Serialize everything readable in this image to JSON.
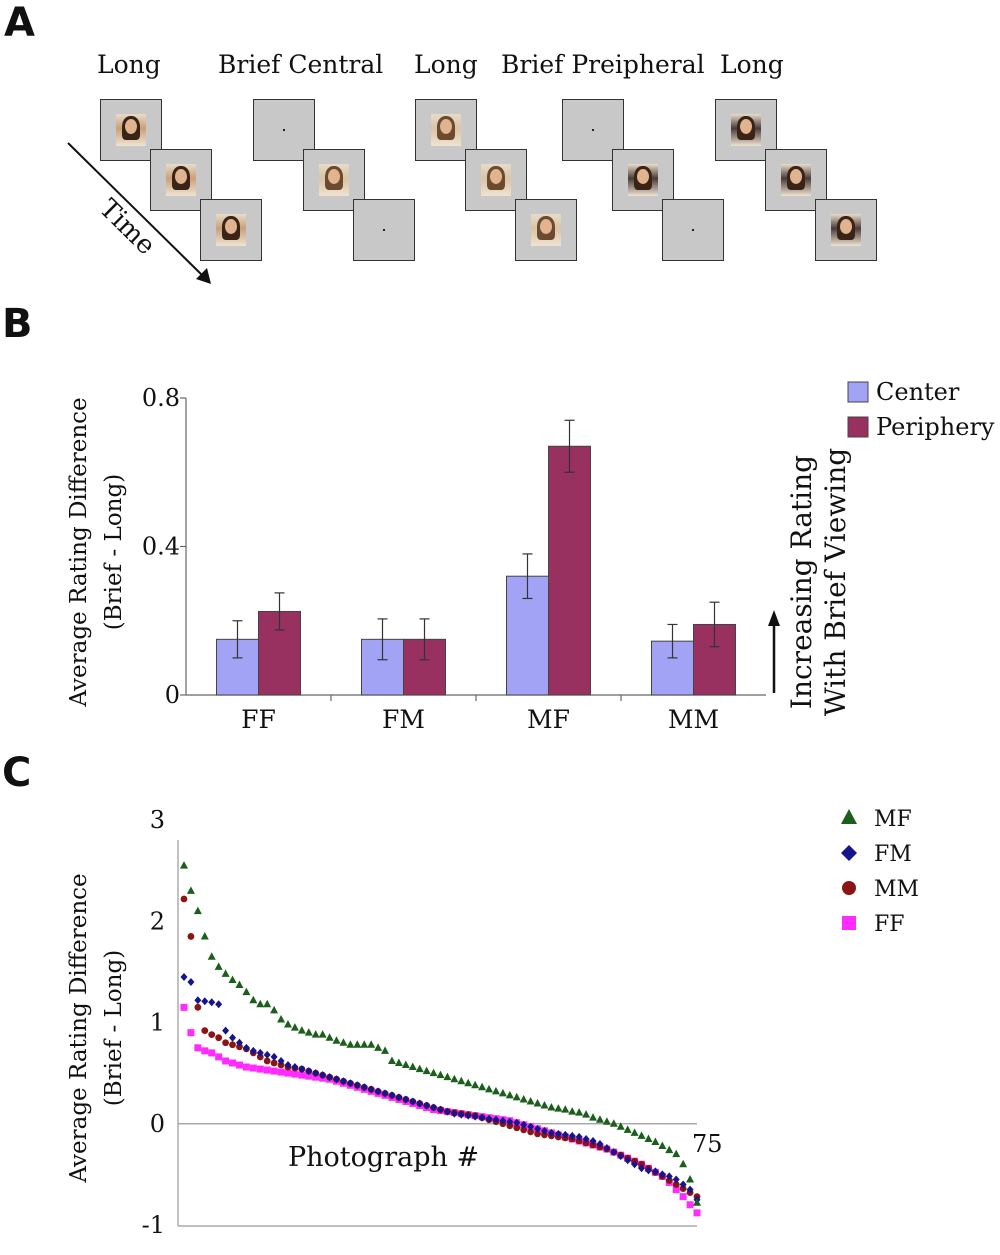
{
  "panels": {
    "a": {
      "letter": "A",
      "labels": [
        "Long",
        "Brief Central",
        "Long",
        "Brief Preipheral",
        "Long"
      ],
      "time_label": "Time"
    },
    "b": {
      "letter": "B",
      "side_note": [
        "Increasing Rating",
        "With Brief Viewing"
      ]
    },
    "c": {
      "letter": "C"
    }
  },
  "colors": {
    "center": "#a3a3f5",
    "periphery": "#983060",
    "mf": "#1c5f1c",
    "fm": "#16168a",
    "mm": "#8b1414",
    "ff": "#ff2bff",
    "frame": "#c8c8c8"
  },
  "icons": {
    "photo": "portrait-photo-icon",
    "fixation": "fixation-dot-icon",
    "time_arrow": "arrow-down-right-icon",
    "up_arrow": "arrow-up-icon"
  },
  "chart_data": [
    {
      "type": "bar",
      "ylabel": [
        "Average Rating Difference",
        "(Brief - Long)"
      ],
      "categories": [
        "FF",
        "FM",
        "MF",
        "MM"
      ],
      "series": [
        {
          "name": "Center",
          "values": [
            0.15,
            0.15,
            0.32,
            0.145
          ],
          "errors": [
            0.05,
            0.055,
            0.06,
            0.045
          ]
        },
        {
          "name": "Periphery",
          "values": [
            0.225,
            0.15,
            0.67,
            0.19
          ],
          "errors": [
            0.05,
            0.055,
            0.07,
            0.06
          ]
        }
      ],
      "yticks": [
        "0",
        "0.4",
        "0.8"
      ],
      "ylim": [
        0,
        0.8
      ],
      "legend": "top-right"
    },
    {
      "type": "scatter",
      "ylabel": [
        "Average Rating Difference",
        "(Brief - Long)"
      ],
      "xlabel": "Photograph #",
      "x_end_label": "75",
      "xlim": [
        1,
        75
      ],
      "ylim": [
        -1,
        3
      ],
      "yticks": [
        "-1",
        "0",
        "1",
        "2",
        "3"
      ],
      "legend": "top-right",
      "series": [
        {
          "name": "MF",
          "marker": "triangle",
          "values": [
            2.55,
            2.3,
            2.1,
            1.85,
            1.65,
            1.55,
            1.48,
            1.42,
            1.37,
            1.3,
            1.22,
            1.18,
            1.18,
            1.12,
            1.03,
            0.98,
            0.95,
            0.92,
            0.9,
            0.88,
            0.88,
            0.85,
            0.82,
            0.8,
            0.78,
            0.78,
            0.78,
            0.78,
            0.75,
            0.72,
            0.62,
            0.6,
            0.58,
            0.56,
            0.54,
            0.52,
            0.5,
            0.48,
            0.46,
            0.44,
            0.42,
            0.4,
            0.38,
            0.36,
            0.34,
            0.32,
            0.3,
            0.28,
            0.26,
            0.24,
            0.22,
            0.2,
            0.18,
            0.16,
            0.15,
            0.14,
            0.12,
            0.11,
            0.09,
            0.06,
            0.04,
            0.02,
            0.0,
            -0.03,
            -0.06,
            -0.09,
            -0.12,
            -0.15,
            -0.18,
            -0.22,
            -0.26,
            -0.3,
            -0.4,
            -0.55,
            -0.78
          ]
        },
        {
          "name": "FM",
          "marker": "diamond",
          "values": [
            1.45,
            1.4,
            1.22,
            1.21,
            1.2,
            1.18,
            0.92,
            0.85,
            0.8,
            0.75,
            0.72,
            0.7,
            0.68,
            0.66,
            0.62,
            0.58,
            0.56,
            0.54,
            0.52,
            0.5,
            0.48,
            0.46,
            0.44,
            0.42,
            0.4,
            0.38,
            0.36,
            0.34,
            0.32,
            0.3,
            0.28,
            0.26,
            0.24,
            0.22,
            0.2,
            0.18,
            0.16,
            0.14,
            0.12,
            0.1,
            0.09,
            0.08,
            0.07,
            0.06,
            0.05,
            0.04,
            0.03,
            0.02,
            0.01,
            -0.01,
            -0.03,
            -0.05,
            -0.07,
            -0.09,
            -0.1,
            -0.11,
            -0.12,
            -0.13,
            -0.15,
            -0.17,
            -0.2,
            -0.24,
            -0.28,
            -0.32,
            -0.36,
            -0.4,
            -0.44,
            -0.46,
            -0.47,
            -0.5,
            -0.52,
            -0.55,
            -0.6,
            -0.65,
            -0.75
          ]
        },
        {
          "name": "MM",
          "marker": "circle",
          "values": [
            2.22,
            1.85,
            1.15,
            0.92,
            0.88,
            0.85,
            0.8,
            0.78,
            0.76,
            0.74,
            0.7,
            0.66,
            0.62,
            0.6,
            0.58,
            0.56,
            0.55,
            0.54,
            0.52,
            0.5,
            0.48,
            0.46,
            0.44,
            0.42,
            0.4,
            0.38,
            0.36,
            0.34,
            0.32,
            0.3,
            0.28,
            0.26,
            0.24,
            0.22,
            0.2,
            0.18,
            0.16,
            0.14,
            0.12,
            0.11,
            0.1,
            0.09,
            0.08,
            0.06,
            0.04,
            0.02,
            0.0,
            -0.02,
            -0.04,
            -0.06,
            -0.08,
            -0.1,
            -0.11,
            -0.12,
            -0.13,
            -0.14,
            -0.15,
            -0.17,
            -0.19,
            -0.21,
            -0.23,
            -0.25,
            -0.28,
            -0.31,
            -0.34,
            -0.37,
            -0.4,
            -0.44,
            -0.48,
            -0.52,
            -0.56,
            -0.6,
            -0.64,
            -0.68,
            -0.72
          ]
        },
        {
          "name": "FF",
          "marker": "square",
          "values": [
            1.15,
            0.9,
            0.75,
            0.72,
            0.7,
            0.66,
            0.62,
            0.6,
            0.58,
            0.56,
            0.55,
            0.54,
            0.53,
            0.52,
            0.51,
            0.5,
            0.49,
            0.48,
            0.47,
            0.46,
            0.45,
            0.44,
            0.42,
            0.4,
            0.38,
            0.36,
            0.34,
            0.32,
            0.3,
            0.28,
            0.26,
            0.24,
            0.22,
            0.2,
            0.18,
            0.16,
            0.14,
            0.13,
            0.12,
            0.11,
            0.1,
            0.09,
            0.08,
            0.07,
            0.06,
            0.05,
            0.04,
            0.03,
            0.01,
            -0.01,
            -0.03,
            -0.05,
            -0.07,
            -0.09,
            -0.11,
            -0.13,
            -0.15,
            -0.17,
            -0.19,
            -0.21,
            -0.23,
            -0.25,
            -0.28,
            -0.31,
            -0.34,
            -0.37,
            -0.4,
            -0.44,
            -0.48,
            -0.52,
            -0.58,
            -0.65,
            -0.72,
            -0.8,
            -0.88
          ]
        }
      ]
    }
  ]
}
